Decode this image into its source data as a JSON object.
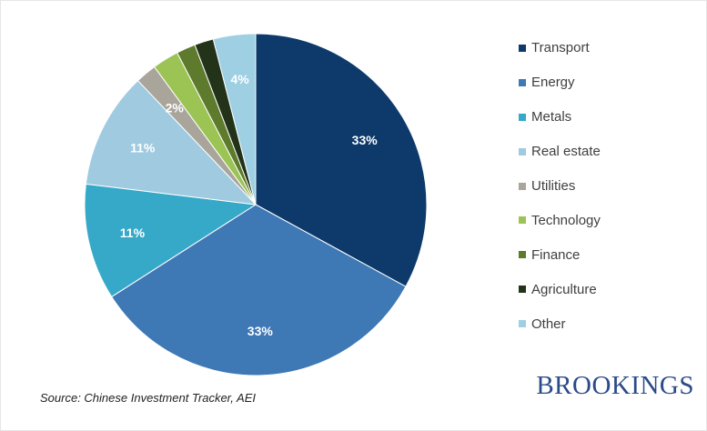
{
  "chart_data": {
    "type": "pie",
    "categories": [
      "Transport",
      "Energy",
      "Metals",
      "Real estate",
      "Utilities",
      "Technology",
      "Finance",
      "Agriculture",
      "Other"
    ],
    "values": [
      33,
      33,
      11,
      11,
      2,
      2.5,
      1.8,
      1.8,
      4
    ],
    "data_labels": [
      "33%",
      "33%",
      "11%",
      "11%",
      "2%",
      "",
      "",
      "",
      "4%"
    ],
    "colors": [
      "#0d3a6b",
      "#3e78b5",
      "#36a9c9",
      "#9fcae0",
      "#a9a59b",
      "#9bc455",
      "#5e7a2c",
      "#22331a",
      "#9ecfe3"
    ],
    "legend_position": "right",
    "start_angle_deg": 0,
    "direction": "clockwise"
  },
  "footer": {
    "source": "Source: Chinese Investment Tracker, AEI",
    "brand": "BROOKINGS"
  }
}
